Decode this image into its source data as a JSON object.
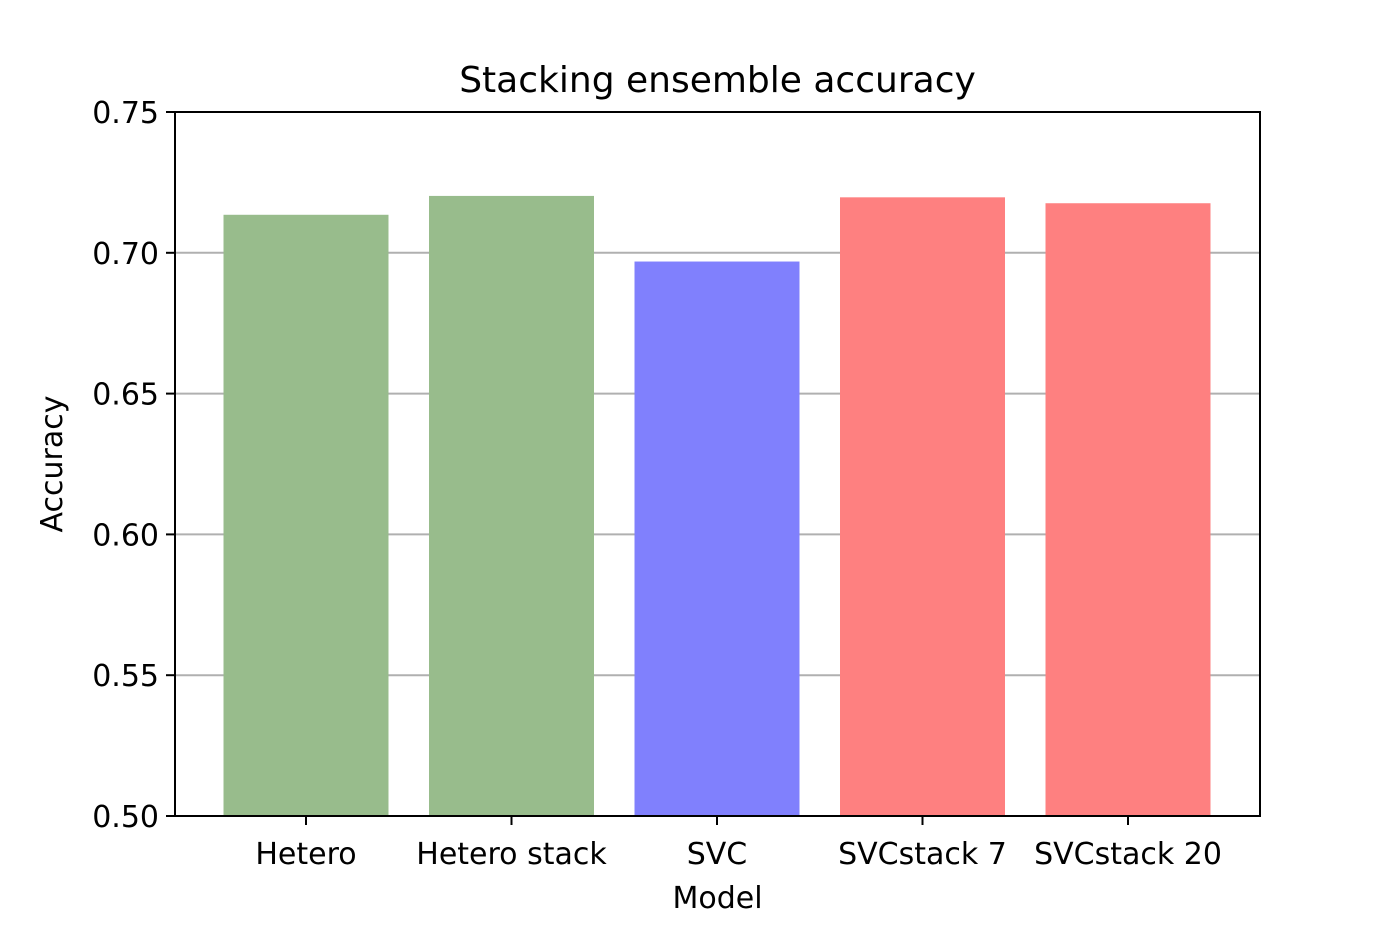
{
  "chart_data": {
    "type": "bar",
    "title": "Stacking ensemble accuracy",
    "xlabel": "Model",
    "ylabel": "Accuracy",
    "ylim": [
      0.5,
      0.75
    ],
    "yticks": [
      "0.50",
      "0.55",
      "0.60",
      "0.65",
      "0.70",
      "0.75"
    ],
    "categories": [
      "Hetero",
      "Hetero stack",
      "SVC",
      "SVCstack 7",
      "SVCstack 20"
    ],
    "values": [
      0.7135,
      0.7202,
      0.6969,
      0.7197,
      0.7176
    ],
    "colors": [
      "#98bc8c",
      "#98bc8c",
      "#8080fd",
      "#fe8080",
      "#fe8080"
    ],
    "grid": "y-axis, horizontal lines",
    "legend": "none"
  }
}
